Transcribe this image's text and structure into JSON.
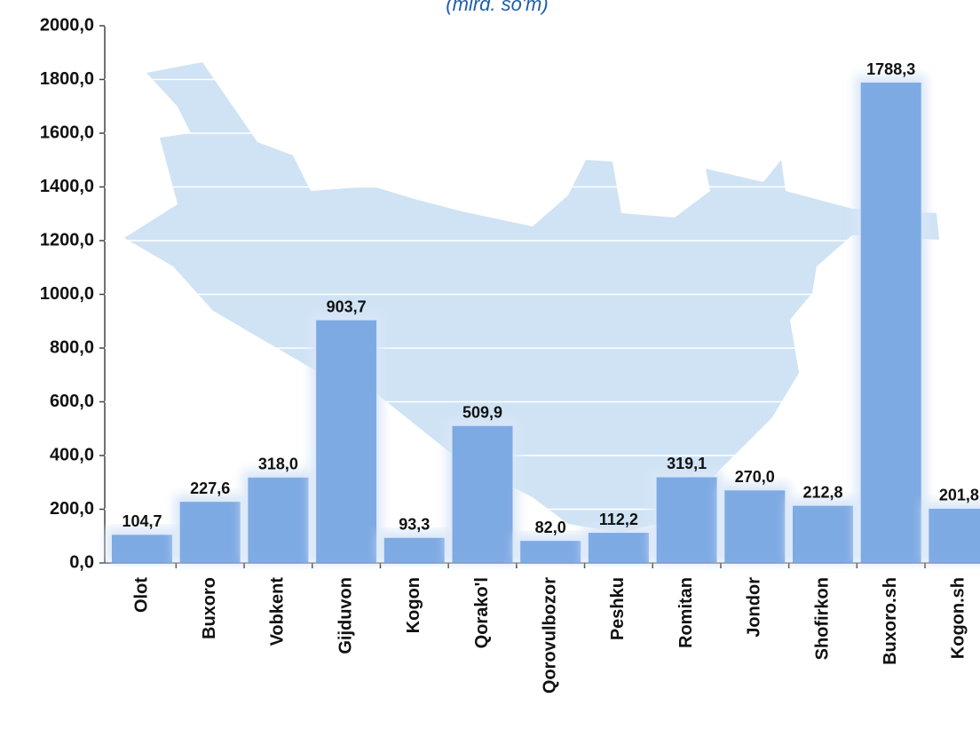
{
  "chart_data": {
    "type": "bar",
    "subtitle": "(mlrd. so'm)",
    "categories": [
      "Olot",
      "Buxoro",
      "Vobkent",
      "Gijduvon",
      "Kogon",
      "Qorako'l",
      "Qorovulbozor",
      "Peshku",
      "Romitan",
      "Jondor",
      "Shofirkon",
      "Buxoro.sh",
      "Kogon.sh"
    ],
    "values": [
      104.7,
      227.6,
      318.0,
      903.7,
      93.3,
      509.9,
      82.0,
      112.2,
      319.1,
      270.0,
      212.8,
      1788.3,
      201.8
    ],
    "value_labels": [
      "104,7",
      "227,6",
      "318,0",
      "903,7",
      "93,3",
      "509,9",
      "82,0",
      "112,2",
      "319,1",
      "270,0",
      "212,8",
      "1788,3",
      "201,8"
    ],
    "color": "#6f9fdf",
    "ylim": [
      0,
      2000
    ],
    "yticks": [
      {
        "value": 0,
        "label": "0,0"
      },
      {
        "value": 200,
        "label": "200,0"
      },
      {
        "value": 400,
        "label": "400,0"
      },
      {
        "value": 600,
        "label": "600,0"
      },
      {
        "value": 800,
        "label": "800,0"
      },
      {
        "value": 1000,
        "label": "1000,0"
      },
      {
        "value": 1200,
        "label": "1200,0"
      },
      {
        "value": 1400,
        "label": "1400,0"
      },
      {
        "value": 1600,
        "label": "1600,0"
      },
      {
        "value": 1800,
        "label": "1800,0"
      },
      {
        "value": 2000,
        "label": "2000,0"
      }
    ],
    "grid": true
  }
}
